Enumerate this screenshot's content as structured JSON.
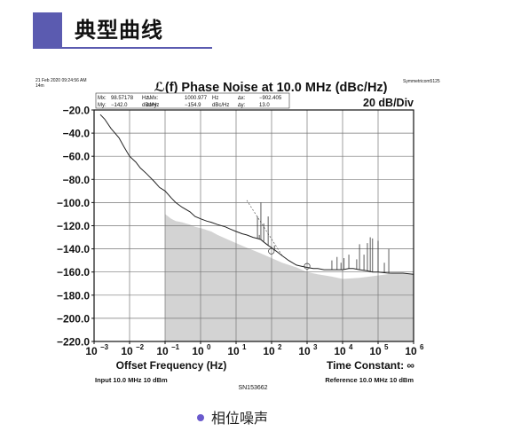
{
  "header": {
    "title": "典型曲线"
  },
  "caption": {
    "text": "相位噪声"
  },
  "colors": {
    "accent": "#5b5bb0",
    "floor": "#d3d3d3",
    "trace": "#222222"
  },
  "chart_data": {
    "type": "line",
    "title": "ℒ(f) Phase Noise at 10.0 MHz (dBc/Hz)",
    "timestamp": "21 Feb 2020 09:24:56 AM",
    "timestamp_sub": "14m",
    "instrument": "Symmetricom5125",
    "scale_label": "20 dB/Div",
    "marker_box": {
      "row1": [
        "Mx:",
        "98.57178",
        "Hz",
        "∆Mx:",
        "1000.977",
        "Hz",
        "∆x:",
        "−902.405"
      ],
      "row2": [
        "My:",
        "−142.0",
        "dBc/Hz",
        "∆My:",
        "−154.9",
        "dBc/Hz",
        "∆y:",
        "13.0"
      ]
    },
    "xlabel": "Offset Frequency (Hz)",
    "time_constant_label": "Time Constant: ∞",
    "input_label": "Input 10.0 MHz 10 dBm",
    "reference_label": "Reference 10.0 MHz 10 dBm",
    "serial": "SN153662",
    "x_scale": "log",
    "xlim": [
      0.001,
      1000000
    ],
    "ylim": [
      -220,
      -20
    ],
    "grid": true,
    "x_ticks": [
      {
        "base": "10",
        "exp": "−3"
      },
      {
        "base": "10",
        "exp": "−2"
      },
      {
        "base": "10",
        "exp": "−1"
      },
      {
        "base": "10",
        "exp": "0"
      },
      {
        "base": "10",
        "exp": "1"
      },
      {
        "base": "10",
        "exp": "2"
      },
      {
        "base": "10",
        "exp": "3"
      },
      {
        "base": "10",
        "exp": "4"
      },
      {
        "base": "10",
        "exp": "5"
      },
      {
        "base": "10",
        "exp": "6"
      }
    ],
    "y_ticks": [
      "−20.0",
      "−40.0",
      "−60.0",
      "−80.0",
      "−100.0",
      "−120.0",
      "−140.0",
      "−160.0",
      "−180.0",
      "−200.0",
      "−220.0"
    ],
    "series": [
      {
        "role": "measurement",
        "x": [
          0.0015,
          0.002,
          0.003,
          0.005,
          0.007,
          0.01,
          0.015,
          0.02,
          0.03,
          0.05,
          0.07,
          0.1,
          0.15,
          0.2,
          0.3,
          0.5,
          0.7,
          1,
          1.5,
          2,
          3,
          5,
          7,
          10,
          15,
          20,
          30,
          40,
          50,
          60,
          80,
          100,
          150,
          200,
          300,
          500,
          700,
          1000,
          1500,
          2000,
          3000,
          5000,
          7000,
          10000,
          15000,
          20000,
          30000,
          50000,
          70000,
          100000,
          200000,
          500000,
          1000000
        ],
        "y": [
          -24,
          -28,
          -36,
          -44,
          -52,
          -60,
          -65,
          -70,
          -75,
          -82,
          -87,
          -90,
          -96,
          -100,
          -104,
          -108,
          -112,
          -114,
          -116,
          -117,
          -119,
          -121,
          -123,
          -125,
          -127,
          -128,
          -130,
          -131,
          -132,
          -134,
          -137,
          -139,
          -143,
          -146,
          -150,
          -154,
          -155,
          -156,
          -157,
          -157,
          -158,
          -158,
          -158,
          -158,
          -157,
          -157,
          -158,
          -159,
          -160,
          -160,
          -161,
          -161,
          -162
        ]
      },
      {
        "role": "noise-floor",
        "x": [
          0.1,
          0.15,
          0.2,
          0.3,
          0.5,
          0.7,
          1,
          2,
          3,
          5,
          10,
          20,
          50,
          100,
          200,
          500,
          1000,
          2000,
          5000,
          10000,
          30000,
          100000,
          300000,
          1000000
        ],
        "y": [
          -110,
          -114,
          -116,
          -117,
          -119,
          -121,
          -122,
          -125,
          -128,
          -131,
          -135,
          -139,
          -144,
          -148,
          -152,
          -156,
          -160,
          -162,
          -164,
          -166,
          -165,
          -163,
          -161,
          -162
        ]
      },
      {
        "role": "spurs",
        "x": [
          40,
          45,
          50,
          60,
          80,
          120,
          5000,
          7000,
          9000,
          11000,
          15000,
          25000,
          30000,
          40000,
          50000,
          60000,
          70000,
          100000,
          150000,
          200000
        ],
        "y": [
          -112,
          -128,
          -100,
          -118,
          -112,
          -137,
          -150,
          -147,
          -152,
          -148,
          -145,
          -149,
          -136,
          -145,
          -135,
          -130,
          -131,
          -133,
          -152,
          -140
        ]
      },
      {
        "role": "reference-slope",
        "x": [
          20,
          200
        ],
        "y": [
          -98,
          -146
        ]
      }
    ],
    "annotations": [
      {
        "type": "marker",
        "x": 98.57,
        "y": -142.0
      },
      {
        "type": "marker",
        "x": 1000.977,
        "y": -155.0
      }
    ]
  }
}
